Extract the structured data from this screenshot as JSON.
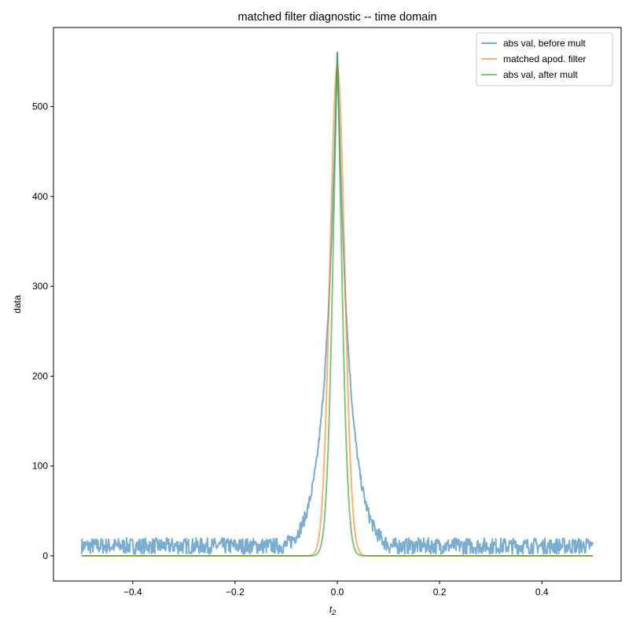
{
  "chart_data": {
    "type": "line",
    "title": "matched filter diagnostic -- time domain",
    "xlabel": "t",
    "xlabel_subscript": "2",
    "ylabel": "data",
    "xlim": [
      -0.555,
      0.555
    ],
    "ylim": [
      -28,
      588
    ],
    "xticks": [
      -0.4,
      -0.2,
      0.0,
      0.2,
      0.4
    ],
    "xtick_labels": [
      "−0.4",
      "−0.2",
      "0.0",
      "0.2",
      "0.4"
    ],
    "yticks": [
      0,
      100,
      200,
      300,
      400,
      500
    ],
    "ytick_labels": [
      "0",
      "100",
      "200",
      "300",
      "400",
      "500"
    ],
    "grid": false,
    "legend_position": "upper right",
    "x_range": [
      -0.5,
      0.5
    ],
    "series": [
      {
        "name": "abs val, before mult",
        "color": "#1f77b4",
        "alpha": 0.6,
        "model": "exp_decay_noise",
        "peak": 560,
        "tau": 0.024,
        "noise_floor_max": 18,
        "cutoff": 0.1
      },
      {
        "name": "matched apod. filter",
        "color": "#ff7f0e",
        "alpha": 0.6,
        "model": "gaussian",
        "peak": 545,
        "sigma": 0.0141
      },
      {
        "name": "abs val, after mult",
        "color": "#2ca02c",
        "alpha": 0.6,
        "model": "product",
        "peak": 560
      }
    ],
    "sample_points": {
      "x": [
        -0.5,
        -0.2,
        -0.1,
        -0.05,
        -0.02,
        0.0,
        0.02,
        0.05,
        0.1,
        0.2,
        0.5
      ],
      "abs_val_before_mult": [
        10,
        10,
        15,
        70,
        245,
        560,
        245,
        70,
        15,
        10,
        10
      ],
      "matched_apod_filter": [
        0,
        0,
        0,
        1,
        200,
        545,
        200,
        1,
        0,
        0,
        0
      ],
      "abs_val_after_mult": [
        0,
        0,
        0,
        0,
        90,
        560,
        90,
        0,
        0,
        0,
        0
      ]
    }
  },
  "legend": {
    "items": [
      {
        "label": "abs val, before mult",
        "color": "#1f77b4"
      },
      {
        "label": "matched apod. filter",
        "color": "#ff7f0e"
      },
      {
        "label": "abs val, after mult",
        "color": "#2ca02c"
      }
    ]
  }
}
